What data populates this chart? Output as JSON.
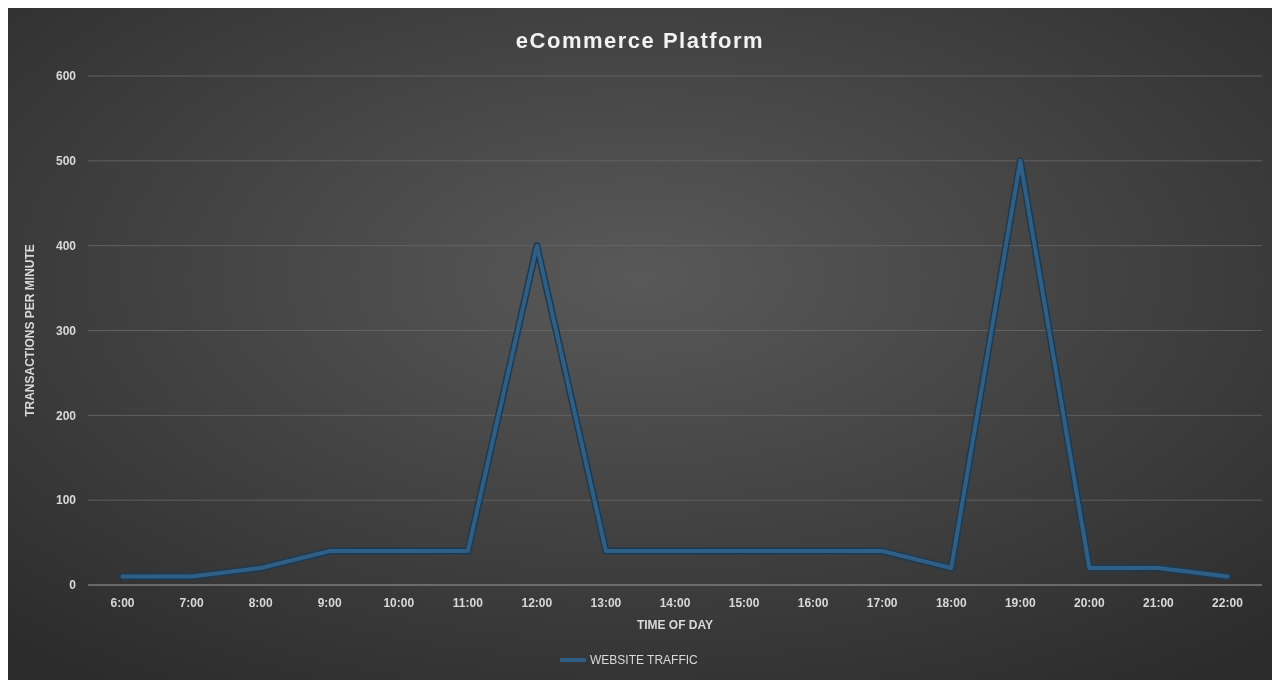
{
  "chart_data": {
    "type": "line",
    "title": "eCommerce Platform",
    "xlabel": "TIME OF DAY",
    "ylabel": "TRANSACTIONS PER MINUTE",
    "categories": [
      "6:00",
      "7:00",
      "8:00",
      "9:00",
      "10:00",
      "11:00",
      "12:00",
      "13:00",
      "14:00",
      "15:00",
      "16:00",
      "17:00",
      "18:00",
      "19:00",
      "20:00",
      "21:00",
      "22:00"
    ],
    "series": [
      {
        "name": "WEBSITE TRAFFIC",
        "color": "#2f5f84",
        "values": [
          10,
          10,
          20,
          40,
          40,
          40,
          400,
          40,
          40,
          40,
          40,
          40,
          20,
          500,
          20,
          20,
          10
        ]
      }
    ],
    "ylim": [
      0,
      600
    ],
    "yticks": [
      0,
      100,
      200,
      300,
      400,
      500,
      600
    ],
    "grid": "y",
    "legend": "bottom",
    "marker": "none",
    "line_style": "solid"
  }
}
